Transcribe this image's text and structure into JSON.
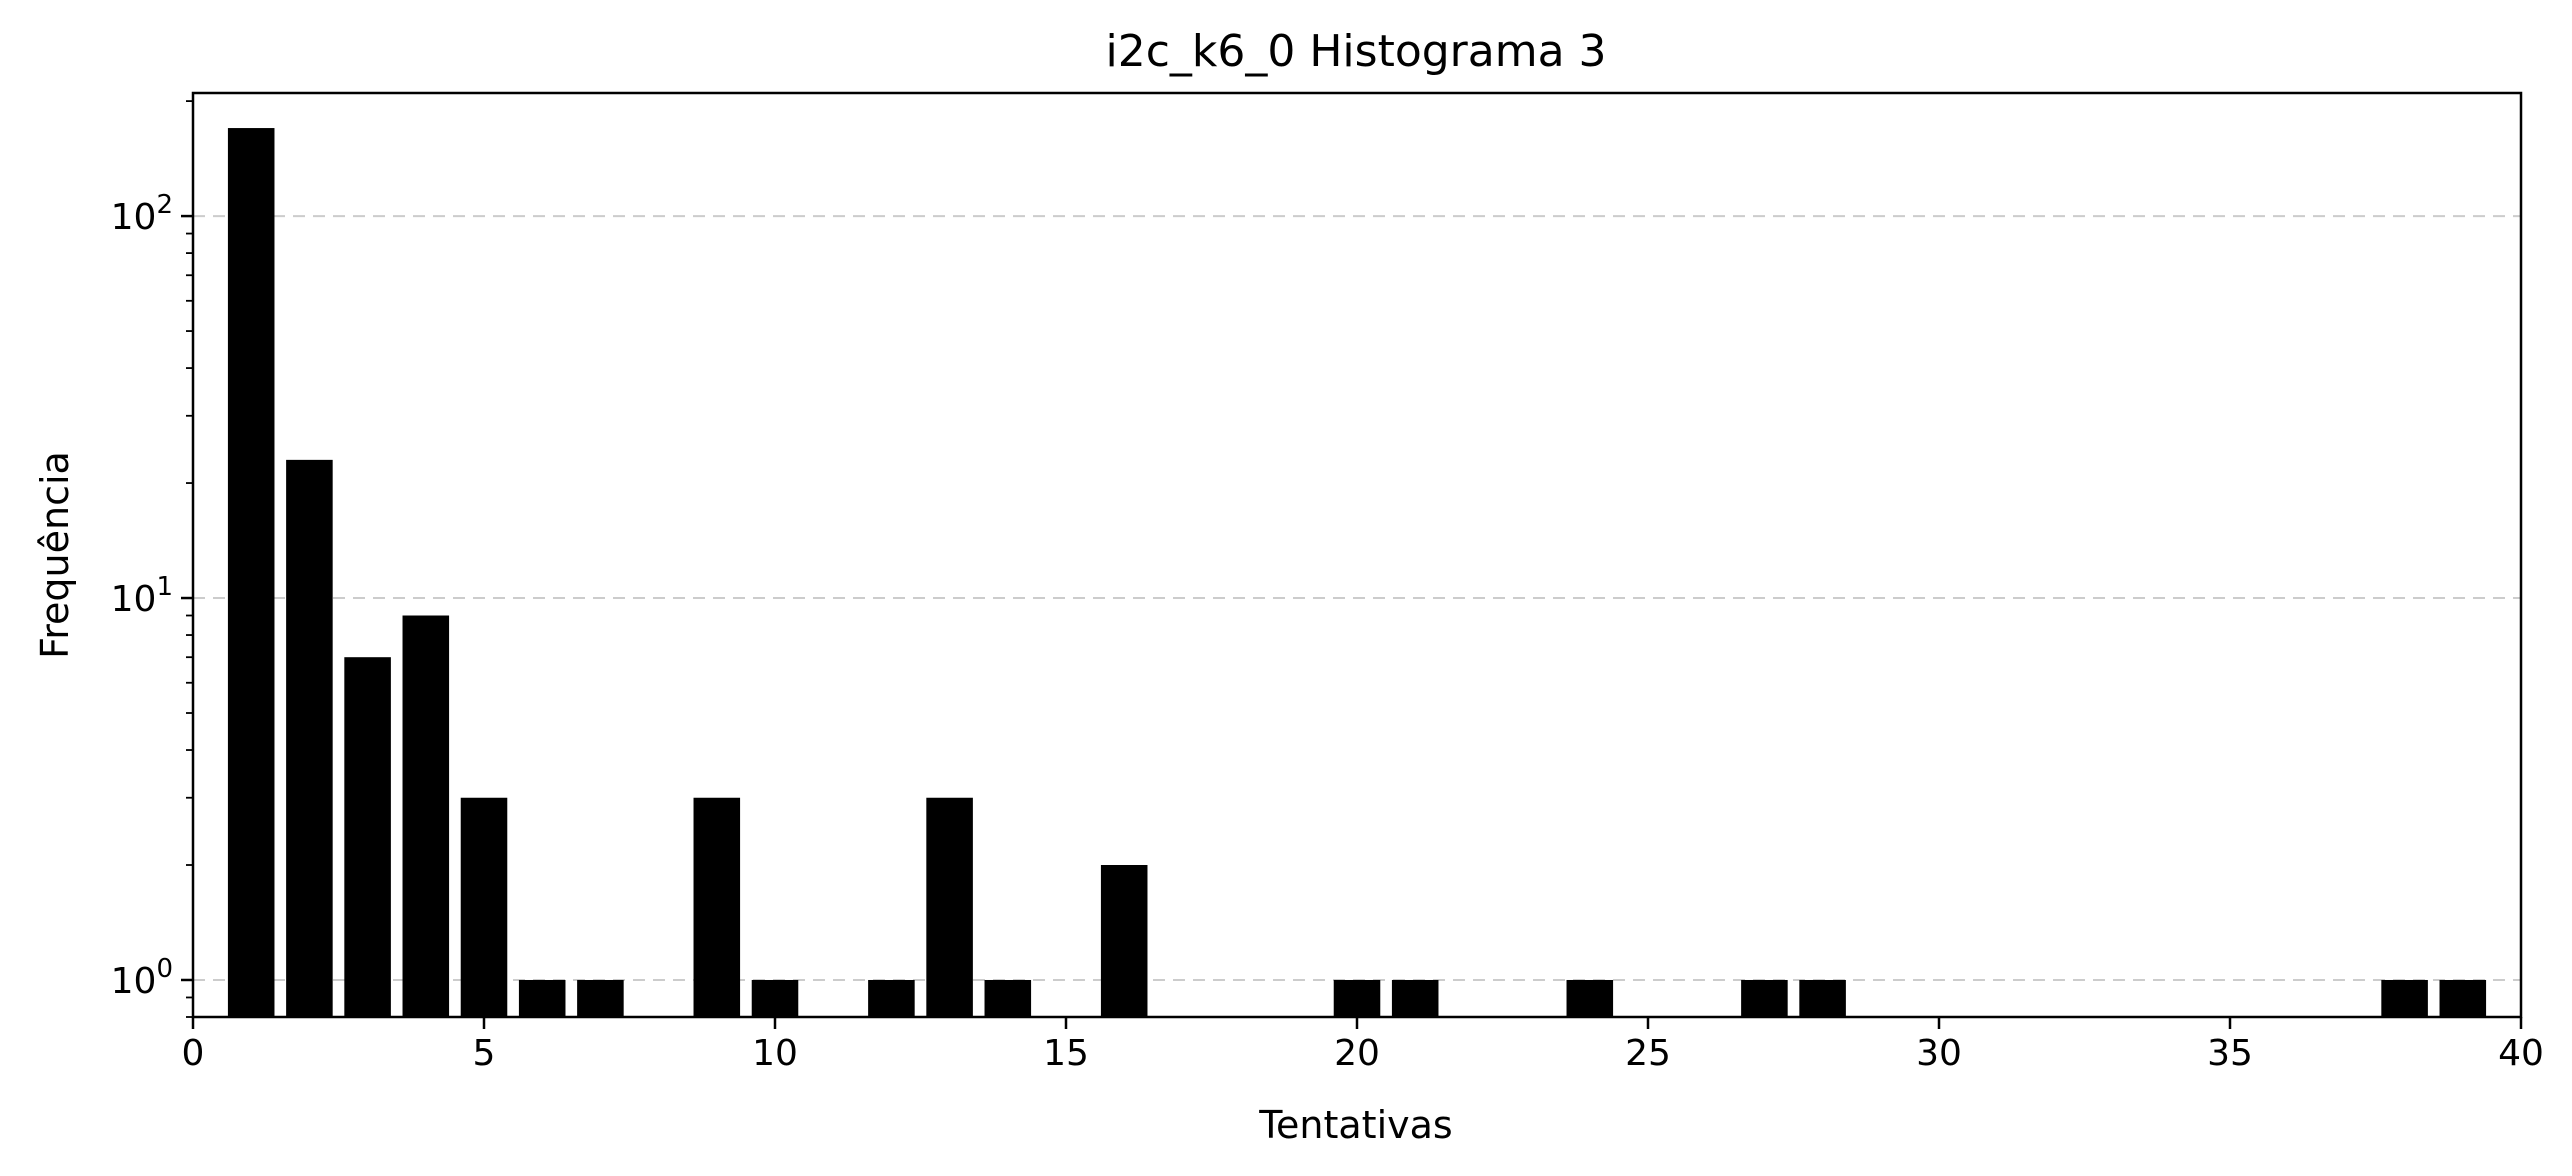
{
  "chart_data": {
    "type": "bar",
    "title": "i2c_k6_0 Histograma 3",
    "xlabel": "Tentativas",
    "ylabel": "Frequência",
    "yscale": "log",
    "xlim": [
      0,
      40
    ],
    "ylim": [
      0.8,
      210
    ],
    "grid": "y-major-dashed",
    "bar_color": "#000000",
    "grid_color": "#cccccc",
    "x_ticks": [
      0,
      5,
      10,
      15,
      20,
      25,
      30,
      35,
      40
    ],
    "x_tick_labels": [
      "0",
      "5",
      "10",
      "15",
      "20",
      "25",
      "30",
      "35",
      "40"
    ],
    "y_ticks": [
      1,
      10,
      100
    ],
    "y_tick_labels": [
      {
        "base": "10",
        "exp": "0"
      },
      {
        "base": "10",
        "exp": "1"
      },
      {
        "base": "10",
        "exp": "2"
      }
    ],
    "x": [
      1,
      2,
      3,
      4,
      5,
      6,
      7,
      9,
      10,
      12,
      13,
      14,
      16,
      20,
      21,
      24,
      27,
      28,
      38,
      39
    ],
    "values": [
      170,
      23,
      7,
      9,
      3,
      1,
      1,
      3,
      1,
      1,
      3,
      1,
      2,
      1,
      1,
      1,
      1,
      1,
      1,
      1
    ]
  }
}
